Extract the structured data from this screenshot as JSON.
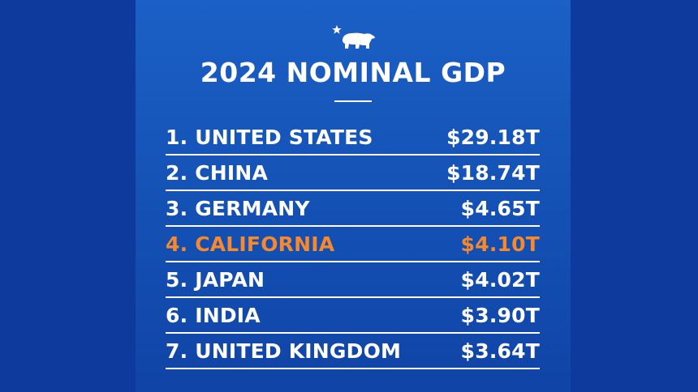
{
  "header": {
    "logo_icon": "bear-star-icon",
    "title": "2024 NOMINAL GDP"
  },
  "rankings": [
    {
      "label": "1. UNITED STATES",
      "value": "$29.18T"
    },
    {
      "label": "2. CHINA",
      "value": "$18.74T"
    },
    {
      "label": "3. GERMANY",
      "value": "$4.65T"
    },
    {
      "label": "4. CALIFORNIA",
      "value": "$4.10T"
    },
    {
      "label": "5. JAPAN",
      "value": "$4.02T"
    },
    {
      "label": "6. INDIA",
      "value": "$3.90T"
    },
    {
      "label": "7. UNITED KINGDOM",
      "value": "$3.64T"
    }
  ],
  "colors": {
    "background": "#0e3a9e",
    "card_top": "#1b60c6",
    "text": "#ffffff",
    "highlight": "#f6892d"
  }
}
